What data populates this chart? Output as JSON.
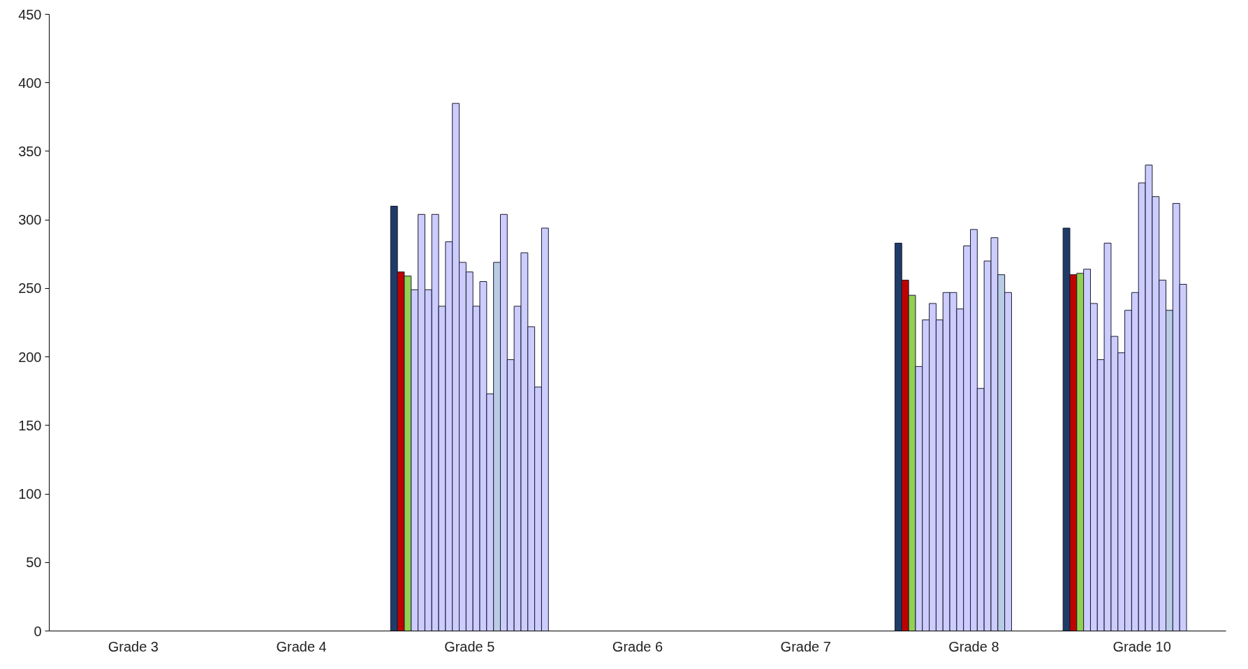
{
  "chart_data": {
    "type": "bar",
    "categories": [
      "Grade 3",
      "Grade 4",
      "Grade 5",
      "Grade 6",
      "Grade 7",
      "Grade 8",
      "Grade 10"
    ],
    "ylim": [
      0,
      450
    ],
    "yticks": [
      0,
      50,
      100,
      150,
      200,
      250,
      300,
      350,
      400,
      450
    ],
    "grid": false,
    "series": [
      {
        "color": "#1f3c68",
        "values": [
          null,
          null,
          310,
          null,
          null,
          283,
          294
        ]
      },
      {
        "color": "#c00000",
        "values": [
          null,
          null,
          262,
          null,
          null,
          256,
          260
        ]
      },
      {
        "color": "#92d050",
        "values": [
          null,
          null,
          259,
          null,
          null,
          245,
          261
        ]
      },
      {
        "color": "#ccccff",
        "values": [
          null,
          null,
          249,
          null,
          null,
          193,
          264
        ]
      },
      {
        "color": "#ccccff",
        "values": [
          null,
          null,
          304,
          null,
          null,
          227,
          239
        ]
      },
      {
        "color": "#ccccff",
        "values": [
          null,
          null,
          249,
          null,
          null,
          239,
          198
        ]
      },
      {
        "color": "#ccccff",
        "values": [
          null,
          null,
          304,
          null,
          null,
          227,
          283
        ]
      },
      {
        "color": "#ccccff",
        "values": [
          null,
          null,
          237,
          null,
          null,
          247,
          215
        ]
      },
      {
        "color": "#ccccff",
        "values": [
          null,
          null,
          284,
          null,
          null,
          247,
          203
        ]
      },
      {
        "color": "#ccccff",
        "values": [
          null,
          null,
          385,
          null,
          null,
          235,
          234
        ]
      },
      {
        "color": "#ccccff",
        "values": [
          null,
          null,
          269,
          null,
          null,
          281,
          247
        ]
      },
      {
        "color": "#ccccff",
        "values": [
          null,
          null,
          262,
          null,
          null,
          293,
          327
        ]
      },
      {
        "color": "#ccccff",
        "values": [
          null,
          null,
          237,
          null,
          null,
          177,
          340
        ]
      },
      {
        "color": "#ccccff",
        "values": [
          null,
          null,
          255,
          null,
          null,
          270,
          317
        ]
      },
      {
        "color": "#ccccff",
        "values": [
          null,
          null,
          173,
          null,
          null,
          287,
          256
        ]
      },
      {
        "color": "#b8cce4",
        "values": [
          null,
          null,
          269,
          null,
          null,
          260,
          234
        ]
      },
      {
        "color": "#ccccff",
        "values": [
          null,
          null,
          304,
          null,
          null,
          247,
          312
        ]
      },
      {
        "color": "#ccccff",
        "values": [
          null,
          null,
          198,
          null,
          null,
          null,
          253
        ]
      },
      {
        "color": "#ccccff",
        "values": [
          null,
          null,
          237,
          null,
          null,
          null,
          null
        ]
      },
      {
        "color": "#ccccff",
        "values": [
          null,
          null,
          276,
          null,
          null,
          null,
          null
        ]
      },
      {
        "color": "#ccccff",
        "values": [
          null,
          null,
          222,
          null,
          null,
          null,
          null
        ]
      },
      {
        "color": "#ccccff",
        "values": [
          null,
          null,
          178,
          null,
          null,
          null,
          null
        ]
      },
      {
        "color": "#ccccff",
        "values": [
          null,
          null,
          294,
          null,
          null,
          null,
          null
        ]
      }
    ]
  }
}
